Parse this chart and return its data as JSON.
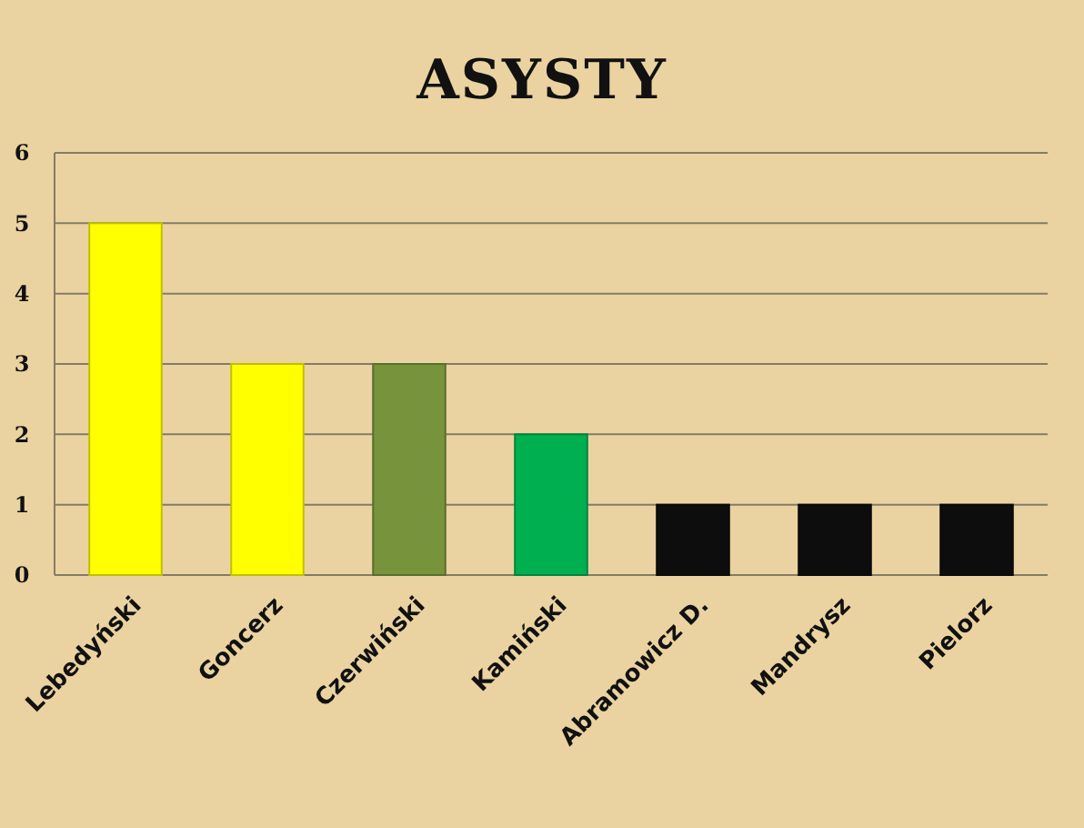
{
  "chart_data": {
    "type": "bar",
    "title": "ASYSTY",
    "categories": [
      "Lebedyński",
      "Goncerz",
      "Czerwiński",
      "Kamiński",
      "Abramowicz D.",
      "Mandrysz",
      "Pielorz"
    ],
    "values": [
      5,
      3,
      3,
      2,
      1,
      1,
      1
    ],
    "colors": [
      "#ffff00",
      "#ffff00",
      "#77933c",
      "#00b050",
      "#0d0d0d",
      "#0d0d0d",
      "#0d0d0d"
    ],
    "ylim": [
      0,
      6
    ],
    "yticks": [
      0,
      1,
      2,
      3,
      4,
      5,
      6
    ],
    "grid": "y"
  }
}
